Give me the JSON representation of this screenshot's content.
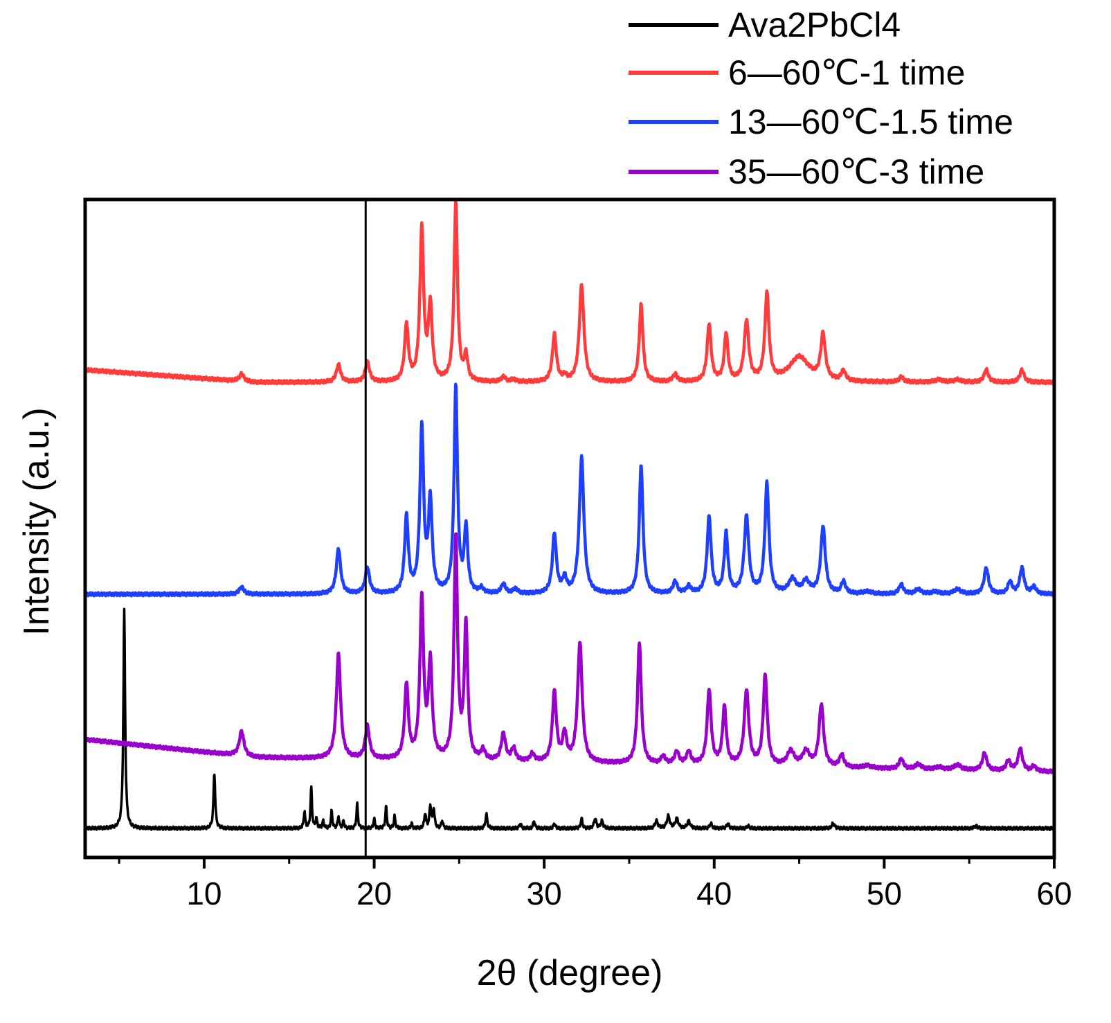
{
  "chart_data": {
    "type": "line",
    "xlabel": "2θ (degree)",
    "ylabel": "Intensity (a.u.)",
    "xlim": [
      3,
      60
    ],
    "y_ticks_shown": false,
    "x_ticks": [
      10,
      20,
      30,
      40,
      50,
      60
    ],
    "x_minor_ticks": [
      5,
      15,
      25,
      35,
      45,
      55
    ],
    "reference_line_x": 19.5,
    "legend_position": "top-right (above plot)",
    "series": [
      {
        "name": "Ava2PbCl4",
        "color": "#000000",
        "baseline": 0.0,
        "end": 0.0,
        "peaks": [
          [
            5.3,
            0.9,
            0.06
          ],
          [
            10.6,
            0.23,
            0.06
          ],
          [
            15.9,
            0.07,
            0.05
          ],
          [
            16.3,
            0.17,
            0.05
          ],
          [
            16.6,
            0.04,
            0.05
          ],
          [
            17.0,
            0.03,
            0.05
          ],
          [
            17.5,
            0.07,
            0.05
          ],
          [
            17.9,
            0.05,
            0.05
          ],
          [
            18.2,
            0.03,
            0.05
          ],
          [
            19.0,
            0.1,
            0.05
          ],
          [
            20.0,
            0.04,
            0.05
          ],
          [
            20.7,
            0.09,
            0.05
          ],
          [
            21.2,
            0.05,
            0.05
          ],
          [
            22.2,
            0.02,
            0.05
          ],
          [
            23.0,
            0.06,
            0.06
          ],
          [
            23.3,
            0.09,
            0.06
          ],
          [
            23.5,
            0.08,
            0.06
          ],
          [
            24.0,
            0.03,
            0.06
          ],
          [
            26.6,
            0.06,
            0.06
          ],
          [
            28.6,
            0.02,
            0.06
          ],
          [
            29.4,
            0.03,
            0.06
          ],
          [
            30.6,
            0.02,
            0.06
          ],
          [
            32.2,
            0.04,
            0.06
          ],
          [
            33.0,
            0.04,
            0.08
          ],
          [
            33.4,
            0.03,
            0.08
          ],
          [
            36.6,
            0.03,
            0.1
          ],
          [
            37.3,
            0.05,
            0.1
          ],
          [
            37.8,
            0.04,
            0.1
          ],
          [
            38.5,
            0.03,
            0.1
          ],
          [
            39.8,
            0.02,
            0.08
          ],
          [
            40.8,
            0.02,
            0.08
          ],
          [
            42.0,
            0.01,
            0.08
          ],
          [
            47.0,
            0.02,
            0.1
          ],
          [
            55.4,
            0.01,
            0.1
          ]
        ]
      },
      {
        "name": "35—60℃-3 time",
        "color": "#9900CC",
        "baseline": 0.18,
        "end": 0.11,
        "peaks": [
          [
            12.2,
            0.1,
            0.16
          ],
          [
            17.9,
            0.42,
            0.15
          ],
          [
            19.6,
            0.13,
            0.15
          ],
          [
            21.9,
            0.3,
            0.13
          ],
          [
            22.8,
            0.64,
            0.13
          ],
          [
            23.3,
            0.38,
            0.13
          ],
          [
            24.8,
            0.89,
            0.12
          ],
          [
            25.4,
            0.54,
            0.12
          ],
          [
            26.4,
            0.04,
            0.15
          ],
          [
            27.6,
            0.11,
            0.15
          ],
          [
            28.2,
            0.05,
            0.15
          ],
          [
            29.3,
            0.03,
            0.15
          ],
          [
            30.6,
            0.28,
            0.14
          ],
          [
            31.2,
            0.11,
            0.14
          ],
          [
            32.1,
            0.48,
            0.16
          ],
          [
            35.6,
            0.49,
            0.13
          ],
          [
            37.0,
            0.03,
            0.15
          ],
          [
            37.8,
            0.05,
            0.15
          ],
          [
            38.5,
            0.05,
            0.15
          ],
          [
            39.7,
            0.3,
            0.14
          ],
          [
            40.6,
            0.23,
            0.13
          ],
          [
            41.9,
            0.3,
            0.16
          ],
          [
            43.0,
            0.36,
            0.14
          ],
          [
            44.5,
            0.06,
            0.25
          ],
          [
            45.4,
            0.06,
            0.25
          ],
          [
            46.3,
            0.25,
            0.16
          ],
          [
            47.5,
            0.05,
            0.15
          ],
          [
            49.0,
            0.01,
            0.3
          ],
          [
            51.0,
            0.04,
            0.15
          ],
          [
            52.0,
            0.02,
            0.2
          ],
          [
            53.2,
            0.01,
            0.25
          ],
          [
            54.3,
            0.02,
            0.25
          ],
          [
            55.9,
            0.07,
            0.15
          ],
          [
            57.3,
            0.04,
            0.15
          ],
          [
            58.0,
            0.09,
            0.15
          ],
          [
            58.8,
            0.02,
            0.15
          ]
        ]
      },
      {
        "name": "13—60℃-1.5 time",
        "color": "#1F3FFF",
        "baseline": 0.0,
        "end": 0.0,
        "peaks": [
          [
            12.2,
            0.03,
            0.16
          ],
          [
            17.9,
            0.19,
            0.15
          ],
          [
            19.6,
            0.11,
            0.15
          ],
          [
            21.9,
            0.32,
            0.13
          ],
          [
            22.8,
            0.69,
            0.13
          ],
          [
            23.3,
            0.38,
            0.13
          ],
          [
            24.8,
            0.86,
            0.12
          ],
          [
            25.4,
            0.27,
            0.12
          ],
          [
            26.3,
            0.02,
            0.15
          ],
          [
            27.6,
            0.04,
            0.15
          ],
          [
            28.3,
            0.02,
            0.15
          ],
          [
            30.6,
            0.25,
            0.14
          ],
          [
            31.2,
            0.06,
            0.14
          ],
          [
            32.2,
            0.57,
            0.16
          ],
          [
            35.7,
            0.54,
            0.13
          ],
          [
            37.7,
            0.05,
            0.15
          ],
          [
            38.5,
            0.03,
            0.15
          ],
          [
            39.7,
            0.32,
            0.14
          ],
          [
            40.7,
            0.25,
            0.13
          ],
          [
            41.9,
            0.32,
            0.16
          ],
          [
            43.1,
            0.46,
            0.14
          ],
          [
            44.6,
            0.06,
            0.25
          ],
          [
            45.4,
            0.05,
            0.25
          ],
          [
            46.4,
            0.28,
            0.16
          ],
          [
            47.6,
            0.05,
            0.15
          ],
          [
            49.0,
            0.01,
            0.3
          ],
          [
            51.0,
            0.04,
            0.15
          ],
          [
            52.0,
            0.02,
            0.2
          ],
          [
            53.0,
            0.01,
            0.25
          ],
          [
            54.3,
            0.02,
            0.25
          ],
          [
            56.0,
            0.11,
            0.15
          ],
          [
            57.4,
            0.05,
            0.15
          ],
          [
            58.1,
            0.11,
            0.15
          ],
          [
            58.8,
            0.03,
            0.15
          ]
        ]
      },
      {
        "name": "6—60℃-1 time",
        "color": "#FF3B3B",
        "baseline": 0.0,
        "end": 0.0,
        "peaks": [
          [
            12.2,
            0.03,
            0.16
          ],
          [
            17.9,
            0.07,
            0.15
          ],
          [
            19.6,
            0.08,
            0.15
          ],
          [
            21.9,
            0.23,
            0.13
          ],
          [
            22.8,
            0.61,
            0.13
          ],
          [
            23.3,
            0.3,
            0.13
          ],
          [
            24.8,
            0.72,
            0.12
          ],
          [
            25.4,
            0.1,
            0.12
          ],
          [
            27.6,
            0.02,
            0.15
          ],
          [
            28.2,
            0.01,
            0.15
          ],
          [
            30.6,
            0.19,
            0.14
          ],
          [
            31.2,
            0.02,
            0.14
          ],
          [
            32.2,
            0.39,
            0.16
          ],
          [
            35.7,
            0.31,
            0.13
          ],
          [
            37.7,
            0.03,
            0.15
          ],
          [
            39.7,
            0.23,
            0.14
          ],
          [
            40.7,
            0.19,
            0.13
          ],
          [
            41.9,
            0.24,
            0.16
          ],
          [
            43.1,
            0.35,
            0.14
          ],
          [
            45.0,
            0.1,
            0.7
          ],
          [
            46.4,
            0.18,
            0.16
          ],
          [
            47.6,
            0.04,
            0.15
          ],
          [
            51.0,
            0.02,
            0.15
          ],
          [
            53.2,
            0.01,
            0.25
          ],
          [
            54.3,
            0.01,
            0.25
          ],
          [
            56.0,
            0.05,
            0.15
          ],
          [
            58.1,
            0.05,
            0.15
          ]
        ]
      }
    ]
  }
}
